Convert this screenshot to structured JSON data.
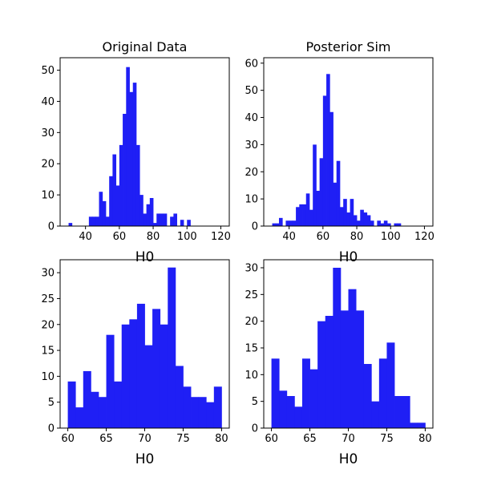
{
  "figure": {
    "background": "#ffffff"
  },
  "chart_data": [
    {
      "type": "bar",
      "title": "Original Data",
      "xlabel": "H0",
      "ylabel": "",
      "bar_color": "#1f1ff5",
      "xlim": [
        25,
        125
      ],
      "ylim": [
        0,
        54
      ],
      "xticks": [
        40,
        60,
        80,
        100,
        120
      ],
      "yticks": [
        0,
        10,
        20,
        30,
        40,
        50
      ],
      "bin_start": 30,
      "bin_width": 2,
      "values": [
        1,
        0,
        0,
        0,
        0,
        0,
        3,
        3,
        3,
        11,
        8,
        3,
        16,
        23,
        13,
        26,
        36,
        51,
        43,
        46,
        26,
        10,
        4,
        7,
        9,
        1,
        4,
        4,
        4,
        0,
        3,
        4,
        0,
        2,
        0,
        2,
        0,
        0,
        0,
        0,
        0,
        0,
        0,
        0,
        0
      ]
    },
    {
      "type": "bar",
      "title": "Posterior Sim",
      "xlabel": "H0",
      "ylabel": "",
      "bar_color": "#1f1ff5",
      "xlim": [
        25,
        125
      ],
      "ylim": [
        0,
        62
      ],
      "xticks": [
        40,
        60,
        80,
        100,
        120
      ],
      "yticks": [
        0,
        10,
        20,
        30,
        40,
        50,
        60
      ],
      "bin_start": 30,
      "bin_width": 2,
      "values": [
        1,
        1,
        3,
        0,
        2,
        2,
        2,
        7,
        8,
        8,
        12,
        6,
        30,
        13,
        25,
        48,
        56,
        42,
        16,
        24,
        7,
        10,
        5,
        10,
        4,
        2,
        6,
        5,
        4,
        2,
        0,
        2,
        1,
        2,
        1,
        0,
        1,
        1,
        0,
        0,
        0,
        0,
        0,
        0,
        0
      ]
    },
    {
      "type": "bar",
      "title": "",
      "xlabel": "H0",
      "ylabel": "",
      "bar_color": "#1f1ff5",
      "xlim": [
        59,
        81
      ],
      "ylim": [
        0,
        32.5
      ],
      "xticks": [
        60,
        65,
        70,
        75,
        80
      ],
      "yticks": [
        0,
        5,
        10,
        15,
        20,
        25,
        30
      ],
      "bin_start": 60,
      "bin_width": 1,
      "values": [
        9,
        4,
        11,
        7,
        6,
        18,
        9,
        20,
        21,
        24,
        16,
        23,
        20,
        31,
        12,
        8,
        6,
        6,
        5,
        8
      ]
    },
    {
      "type": "bar",
      "title": "",
      "xlabel": "H0",
      "ylabel": "",
      "bar_color": "#1f1ff5",
      "xlim": [
        59,
        81
      ],
      "ylim": [
        0,
        31.5
      ],
      "xticks": [
        60,
        65,
        70,
        75,
        80
      ],
      "yticks": [
        0,
        5,
        10,
        15,
        20,
        25,
        30
      ],
      "bin_start": 60,
      "bin_width": 1,
      "values": [
        13,
        7,
        6,
        4,
        13,
        11,
        20,
        21,
        30,
        22,
        26,
        22,
        12,
        5,
        13,
        16,
        6,
        6,
        1,
        1
      ]
    }
  ]
}
